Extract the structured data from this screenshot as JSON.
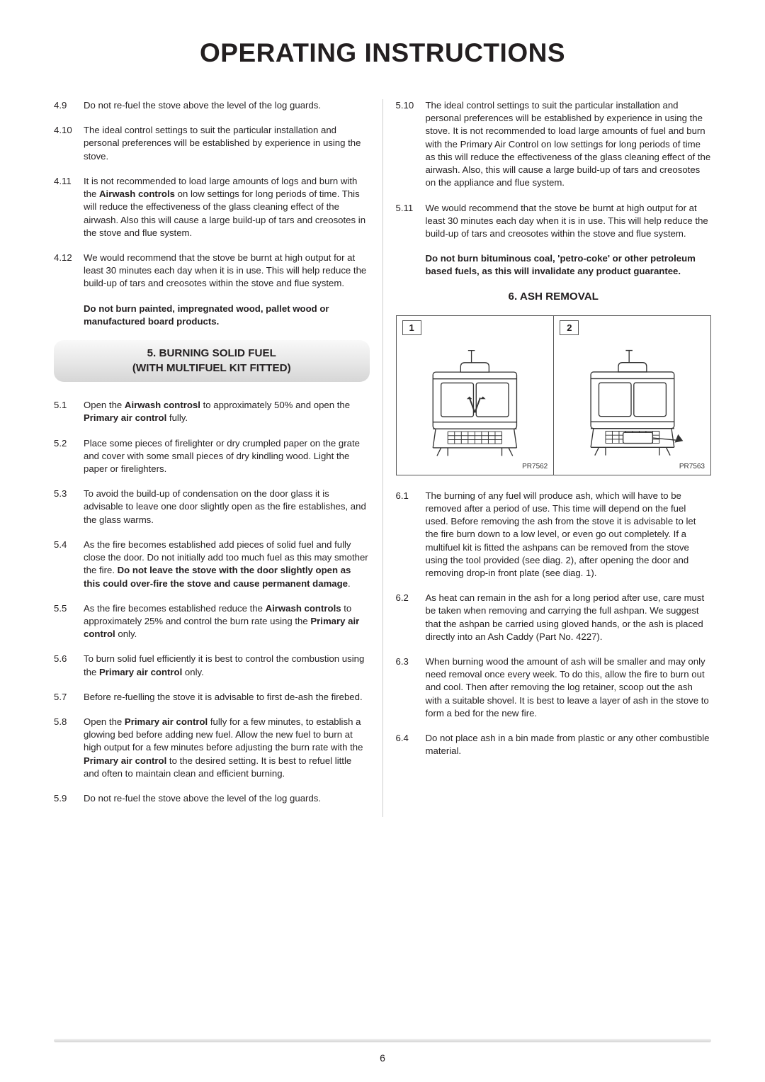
{
  "page_title": "OPERATING INSTRUCTIONS",
  "page_number": "6",
  "left": {
    "items_top": [
      {
        "num": "4.9",
        "body": "Do not re-fuel the stove above the level of the log guards."
      },
      {
        "num": "4.10",
        "body": "The ideal control settings to suit the particular installation and personal preferences will be established by experience in using the stove."
      },
      {
        "num": "4.11",
        "body_parts": [
          "It is not recommended to load large amounts of logs and burn with the ",
          {
            "b": "Airwash controls"
          },
          " on low settings for long periods of time. This will reduce the effectiveness of the glass cleaning effect of the airwash. Also this will cause a large build-up of tars and creosotes in the stove and flue system."
        ]
      },
      {
        "num": "4.12",
        "body": "We would recommend that the stove be burnt at high output for at least 30 minutes each day when it is in use. This will help reduce the build-up of tars and creosotes within the stove and flue system."
      }
    ],
    "warn_top": "Do not burn painted, impregnated wood, pallet wood or manufactured board products.",
    "section5_head_line1": "5. BURNING SOLID FUEL",
    "section5_head_line2": "(WITH MULTIFUEL KIT FITTED)",
    "items_s5": [
      {
        "num": "5.1",
        "body_parts": [
          "Open the ",
          {
            "b": "Airwash controsl"
          },
          " to approximately 50% and open the ",
          {
            "b": "Primary air control"
          },
          " fully."
        ]
      },
      {
        "num": "5.2",
        "body": "Place some pieces of firelighter or dry crumpled paper on the grate and cover with some small pieces of dry kindling wood. Light the paper or firelighters."
      },
      {
        "num": "5.3",
        "body": "To avoid the build-up of condensation on the door glass it is advisable to leave one door slightly open as the fire establishes, and the glass warms."
      },
      {
        "num": "5.4",
        "body_parts": [
          "As the fire becomes established add pieces of solid fuel and fully close the door. Do not initially add too much fuel as this may smother the fire. ",
          {
            "b": "Do not leave the stove with the door slightly open as this could over-fire the stove and cause permanent damage"
          },
          "."
        ]
      },
      {
        "num": "5.5",
        "body_parts": [
          "As the fire becomes established reduce the ",
          {
            "b": "Airwash controls"
          },
          " to approximately 25% and control the burn rate using the ",
          {
            "b": "Primary air control"
          },
          " only."
        ]
      },
      {
        "num": "5.6",
        "body_parts": [
          "To burn solid fuel efficiently it is best to control the combustion using the ",
          {
            "b": "Primary air control"
          },
          " only."
        ]
      },
      {
        "num": "5.7",
        "body": "Before re-fuelling the stove it is advisable to first de-ash the firebed."
      },
      {
        "num": "5.8",
        "body_parts": [
          "Open the ",
          {
            "b": "Primary air control"
          },
          " fully for a few minutes, to establish a glowing bed before adding new fuel. Allow the new fuel to burn at high output for a few minutes before adjusting the burn rate with the ",
          {
            "b": "Primary air control"
          },
          " to the desired setting. It is best to refuel little and often to maintain clean and efficient burning."
        ]
      },
      {
        "num": "5.9",
        "body": "Do not re-fuel the stove above the level of the log guards."
      }
    ]
  },
  "right": {
    "items_top": [
      {
        "num": "5.10",
        "body": "The ideal control settings to suit the particular installation and personal preferences will be established by experience in using the stove. It is not recommended to load large amounts of fuel and burn with the Primary Air Control on low settings for long periods of time as this will reduce the effectiveness of the glass cleaning effect of the airwash. Also, this will cause a large build-up of tars and creosotes on the appliance and flue system."
      },
      {
        "num": "5.11",
        "body": "We would recommend that the stove be burnt at high output for at least 30 minutes each day when it is in use. This will help reduce the build-up of tars and creosotes within the stove and flue system."
      }
    ],
    "warn_top": "Do not burn bituminous coal, 'petro-coke' or other petroleum based fuels, as this will invalidate any product guarantee.",
    "section6_title": "6. ASH REMOVAL",
    "diagram": {
      "label1": "1",
      "label2": "2",
      "ref1": "PR7562",
      "ref2": "PR7563"
    },
    "items_s6": [
      {
        "num": "6.1",
        "body": "The burning of any fuel will produce ash, which will have to be removed after a period of use. This time will depend on the fuel used. Before removing the ash from the stove it is advisable to let the fire burn down to a low level, or even go out completely. If a multifuel kit is fitted the ashpans can be removed from the stove using the tool provided (see diag. 2), after opening the door and removing drop-in front plate (see diag. 1)."
      },
      {
        "num": "6.2",
        "body": "As heat can remain in the ash for a long period after use, care must be taken when removing and carrying the full ashpan. We suggest that the ashpan be carried using gloved hands, or the ash is placed directly into an Ash Caddy (Part No. 4227)."
      },
      {
        "num": "6.3",
        "body": "When burning wood the amount of ash will be smaller and may only need removal once every week. To do this, allow the fire to burn out and cool. Then after removing the log retainer, scoop out the ash with a suitable shovel. It is best to leave a layer of ash in the stove to form a bed for the new fire."
      },
      {
        "num": "6.4",
        "body": "Do not place ash in a bin made from plastic or any other combustible material."
      }
    ]
  }
}
